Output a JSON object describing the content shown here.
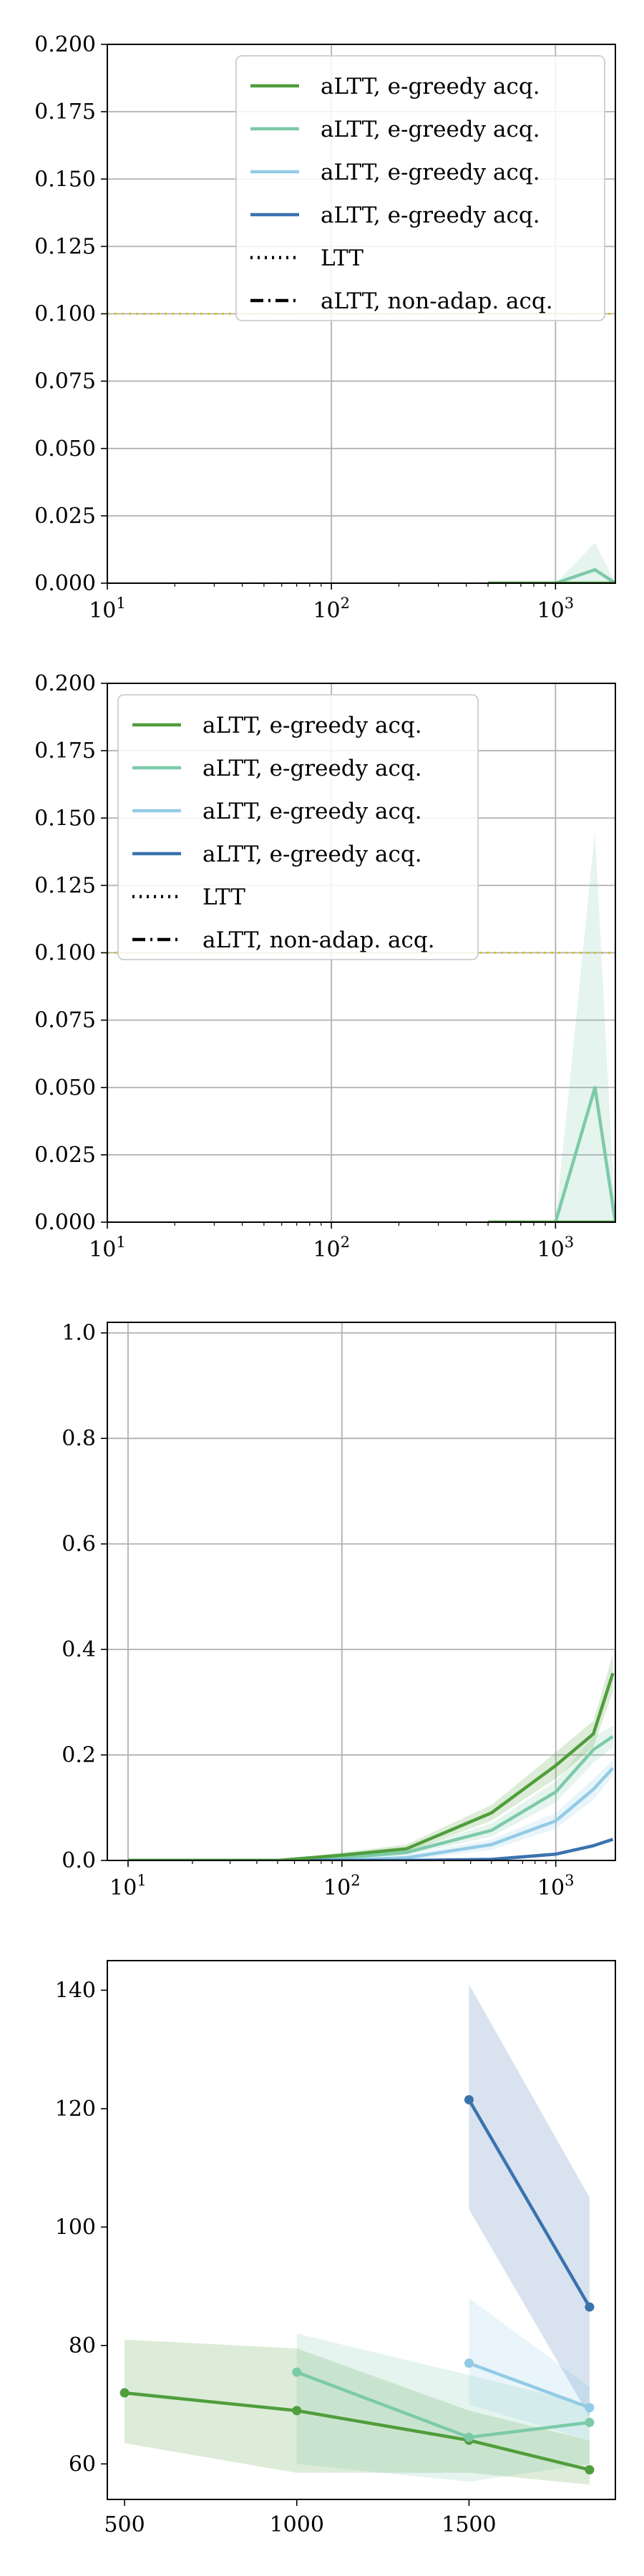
{
  "colors": {
    "green": "#4f9e3c",
    "teal": "#7ccaa8",
    "lightblue": "#92cbe6",
    "darkblue": "#3a72ae",
    "ltt": "#d6c22a",
    "grid": "#b0b0b0"
  },
  "legend": {
    "entries": [
      {
        "label": "aLTT, e-greedy acq.",
        "color": "#4f9e3c",
        "style": "solid"
      },
      {
        "label": "aLTT, e-greedy acq.",
        "color": "#7ccaa8",
        "style": "solid"
      },
      {
        "label": "aLTT, e-greedy acq.",
        "color": "#92cbe6",
        "style": "solid"
      },
      {
        "label": "aLTT, e-greedy acq.",
        "color": "#3a72ae",
        "style": "solid"
      },
      {
        "label": "LTT",
        "color": "#000000",
        "style": "dotted"
      },
      {
        "label": "aLTT, non-adap. acq.",
        "color": "#000000",
        "style": "dashdot"
      }
    ]
  },
  "chart_data": [
    {
      "type": "line",
      "xscale": "log",
      "xlim": [
        10,
        1850
      ],
      "ylim": [
        0,
        0.2
      ],
      "yticks": [
        "0.000",
        "0.025",
        "0.050",
        "0.075",
        "0.100",
        "0.125",
        "0.150",
        "0.175",
        "0.200"
      ],
      "xticks": [
        {
          "base": "10",
          "exp": "1"
        },
        {
          "base": "10",
          "exp": "2"
        },
        {
          "base": "10",
          "exp": "3"
        }
      ],
      "grid": true,
      "legend_position": "top-right",
      "hline": {
        "y": 0.1,
        "color": "#d6c22a",
        "style": "dotted"
      },
      "series": [
        {
          "color": "#7ccaa8",
          "x": [
            500,
            1000,
            1500,
            1850
          ],
          "y": [
            0,
            0,
            0.005,
            0
          ],
          "lower": [
            0,
            0,
            0,
            0
          ],
          "upper": [
            0,
            0,
            0.015,
            0
          ]
        },
        {
          "color": "#4f9e3c",
          "x": [
            500,
            1000,
            1500,
            1850
          ],
          "y": [
            0,
            0,
            0,
            0
          ]
        }
      ]
    },
    {
      "type": "line",
      "xscale": "log",
      "xlim": [
        10,
        1850
      ],
      "ylim": [
        0,
        0.2
      ],
      "yticks": [
        "0.000",
        "0.025",
        "0.050",
        "0.075",
        "0.100",
        "0.125",
        "0.150",
        "0.175",
        "0.200"
      ],
      "xticks": [
        {
          "base": "10",
          "exp": "1"
        },
        {
          "base": "10",
          "exp": "2"
        },
        {
          "base": "10",
          "exp": "3"
        }
      ],
      "grid": true,
      "legend_position": "top-left",
      "hline": {
        "y": 0.1,
        "color": "#d6c22a",
        "style": "dotted"
      },
      "series": [
        {
          "color": "#7ccaa8",
          "x": [
            500,
            1000,
            1500,
            1850
          ],
          "y": [
            0,
            0,
            0.05,
            0
          ],
          "lower": [
            0,
            0,
            0,
            0
          ],
          "upper": [
            0,
            0,
            0.145,
            0
          ]
        },
        {
          "color": "#4f9e3c",
          "x": [
            500,
            1000,
            1500,
            1850
          ],
          "y": [
            0,
            0,
            0,
            0
          ]
        }
      ]
    },
    {
      "type": "line",
      "xscale": "log",
      "xlim": [
        8,
        1900
      ],
      "ylim": [
        0,
        1.02
      ],
      "yticks": [
        "0.0",
        "0.2",
        "0.4",
        "0.6",
        "0.8",
        "1.0"
      ],
      "xticks": [
        {
          "base": "10",
          "exp": "1"
        },
        {
          "base": "10",
          "exp": "2"
        },
        {
          "base": "10",
          "exp": "3"
        }
      ],
      "grid": true,
      "series": [
        {
          "color": "#7ccaa8",
          "x": [
            10,
            20,
            50,
            100,
            200,
            500,
            1000,
            1500,
            1850
          ],
          "y": [
            0,
            0,
            0,
            0.005,
            0.015,
            0.057,
            0.13,
            0.21,
            0.235
          ],
          "lower": [
            0,
            0,
            0,
            0,
            0.01,
            0.045,
            0.11,
            0.185,
            0.215
          ],
          "upper": [
            0,
            0,
            0,
            0.01,
            0.02,
            0.07,
            0.15,
            0.235,
            0.255
          ]
        },
        {
          "color": "#92cbe6",
          "x": [
            10,
            20,
            50,
            100,
            200,
            500,
            1000,
            1500,
            1850
          ],
          "y": [
            0,
            0,
            0,
            0,
            0.005,
            0.03,
            0.075,
            0.135,
            0.175
          ],
          "lower": [
            0,
            0,
            0,
            0,
            0,
            0.02,
            0.06,
            0.115,
            0.16
          ],
          "upper": [
            0,
            0,
            0,
            0,
            0.01,
            0.04,
            0.09,
            0.155,
            0.19
          ]
        },
        {
          "color": "#3a72ae",
          "x": [
            10,
            20,
            50,
            100,
            200,
            500,
            1000,
            1500,
            1850
          ],
          "y": [
            0,
            0,
            0,
            0,
            0,
            0.002,
            0.012,
            0.028,
            0.04
          ]
        },
        {
          "color": "#4f9e3c",
          "x": [
            10,
            20,
            50,
            100,
            200,
            500,
            1000,
            1500,
            1850
          ],
          "y": [
            0,
            0,
            0,
            0.01,
            0.022,
            0.09,
            0.18,
            0.24,
            0.355
          ],
          "lower": [
            0,
            0,
            0,
            0.005,
            0.015,
            0.075,
            0.155,
            0.215,
            0.32
          ],
          "upper": [
            0,
            0,
            0,
            0.015,
            0.03,
            0.105,
            0.205,
            0.265,
            0.39
          ]
        }
      ]
    },
    {
      "type": "line",
      "xscale": "linear",
      "xlim": [
        450,
        1925
      ],
      "ylim": [
        54,
        145
      ],
      "yticks": [
        "60",
        "80",
        "100",
        "120",
        "140"
      ],
      "xticks": [
        "500",
        "1000",
        "1500"
      ],
      "grid": false,
      "markers": true,
      "series": [
        {
          "color": "#4f9e3c",
          "x": [
            500,
            1000,
            1500,
            1850
          ],
          "y": [
            72,
            69,
            64,
            59
          ],
          "lower": [
            63.5,
            58.5,
            58.5,
            56.5
          ],
          "upper": [
            81,
            79.5,
            69,
            64
          ]
        },
        {
          "color": "#7ccaa8",
          "x": [
            1000,
            1500,
            1850
          ],
          "y": [
            75.5,
            64.5,
            67
          ],
          "lower": [
            60,
            57,
            60
          ],
          "upper": [
            82,
            75,
            70
          ]
        },
        {
          "color": "#92cbe6",
          "x": [
            1500,
            1850
          ],
          "y": [
            77,
            69.5
          ],
          "lower": [
            70,
            64
          ],
          "upper": [
            88,
            73
          ]
        },
        {
          "color": "#3a72ae",
          "x": [
            1500,
            1850
          ],
          "y": [
            121.5,
            86.5
          ],
          "lower": [
            103,
            68
          ],
          "upper": [
            141,
            105
          ]
        }
      ]
    }
  ]
}
